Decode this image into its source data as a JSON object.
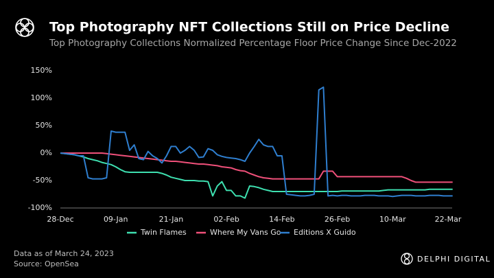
{
  "header": {
    "title": "Top Photography NFT Collections Still on Price Decline",
    "brand": "DELPHI DIGITAL"
  },
  "footer": {
    "note": "Data as of March 24, 2023",
    "source": "Source: OpenSea"
  },
  "chart_data": {
    "type": "line",
    "subtitle": "Top Photography Collections Normalized Percentage Floor Price Change Since Dec-2022",
    "categories": [
      "28-Dec",
      null,
      null,
      null,
      null,
      null,
      null,
      null,
      null,
      null,
      null,
      null,
      "09-Jan",
      null,
      null,
      null,
      null,
      null,
      null,
      null,
      null,
      null,
      null,
      null,
      "21-Jan",
      null,
      null,
      null,
      null,
      null,
      null,
      null,
      null,
      null,
      null,
      null,
      "02-Feb",
      null,
      null,
      null,
      null,
      null,
      null,
      null,
      null,
      null,
      null,
      null,
      "14-Feb",
      null,
      null,
      null,
      null,
      null,
      null,
      null,
      null,
      null,
      null,
      null,
      "26-Feb",
      null,
      null,
      null,
      null,
      null,
      null,
      null,
      null,
      null,
      null,
      null,
      "10-Mar",
      null,
      null,
      null,
      null,
      null,
      null,
      null,
      null,
      null,
      null,
      null,
      "22-Mar",
      null
    ],
    "series": [
      {
        "name": "Twin Flames",
        "color": "#3ee0b0",
        "values": [
          0,
          -1,
          -2,
          -3,
          -5,
          -7,
          -10,
          -12,
          -14,
          -17,
          -19,
          -21,
          -25,
          -30,
          -34,
          -35,
          -35,
          -35,
          -35,
          -35,
          -35,
          -35,
          -37,
          -40,
          -44,
          -46,
          -48,
          -50,
          -50,
          -50,
          -51,
          -51,
          -52,
          -78,
          -60,
          -52,
          -68,
          -68,
          -78,
          -78,
          -82,
          -60,
          -61,
          -63,
          -66,
          -68,
          -70,
          -70,
          -70,
          -70,
          -70,
          -70,
          -70,
          -70,
          -70,
          -70,
          -70,
          -70,
          -70,
          -70,
          -70,
          -69,
          -69,
          -69,
          -69,
          -69,
          -69,
          -69,
          -69,
          -69,
          -68,
          -67,
          -67,
          -67,
          -67,
          -67,
          -67,
          -67,
          -67,
          -67,
          -66,
          -66,
          -66,
          -66,
          -66,
          -66
        ]
      },
      {
        "name": "Where My Vans Go",
        "color": "#f0507a",
        "values": [
          0,
          0,
          0,
          0,
          0,
          0,
          0,
          0,
          0,
          0,
          -1,
          -2,
          -3,
          -4,
          -5,
          -6,
          -7,
          -8,
          -9,
          -10,
          -11,
          -12,
          -13,
          -14,
          -15,
          -15,
          -16,
          -17,
          -18,
          -19,
          -20,
          -20,
          -21,
          -22,
          -23,
          -25,
          -26,
          -27,
          -30,
          -32,
          -33,
          -37,
          -40,
          -43,
          -45,
          -46,
          -47,
          -47,
          -47,
          -47,
          -47,
          -47,
          -47,
          -47,
          -47,
          -47,
          -47,
          -33,
          -33,
          -33,
          -43,
          -43,
          -43,
          -43,
          -43,
          -43,
          -43,
          -43,
          -43,
          -43,
          -43,
          -43,
          -43,
          -43,
          -43,
          -46,
          -50,
          -53,
          -53,
          -53,
          -53,
          -53,
          -53,
          -53,
          -53,
          -53
        ]
      },
      {
        "name": "Editions X Guido",
        "color": "#2f7fd0",
        "values": [
          0,
          -1,
          -2,
          -3,
          -5,
          -5,
          -45,
          -47,
          -47,
          -47,
          -45,
          40,
          38,
          38,
          38,
          5,
          15,
          -10,
          -12,
          3,
          -5,
          -10,
          -18,
          -5,
          12,
          12,
          0,
          5,
          12,
          5,
          -8,
          -7,
          8,
          5,
          -3,
          -6,
          -8,
          -9,
          -10,
          -12,
          -15,
          0,
          12,
          25,
          15,
          12,
          12,
          -5,
          -5,
          -75,
          -76,
          -77,
          -78,
          -78,
          -77,
          -75,
          115,
          120,
          -78,
          -77,
          -78,
          -77,
          -77,
          -78,
          -78,
          -78,
          -77,
          -77,
          -77,
          -78,
          -78,
          -78,
          -79,
          -78,
          -77,
          -77,
          -77,
          -78,
          -78,
          -78,
          -77,
          -77,
          -77,
          -78,
          -78,
          -78
        ]
      }
    ],
    "ylim": [
      -100,
      150
    ],
    "yticks": [
      {
        "value": -100,
        "label": "-100%"
      },
      {
        "value": -50,
        "label": "-50%"
      },
      {
        "value": 0,
        "label": "0%"
      },
      {
        "value": 50,
        "label": "50%"
      },
      {
        "value": 100,
        "label": "100%"
      },
      {
        "value": 150,
        "label": "150%"
      }
    ],
    "grid": false,
    "legend": "bottom"
  }
}
